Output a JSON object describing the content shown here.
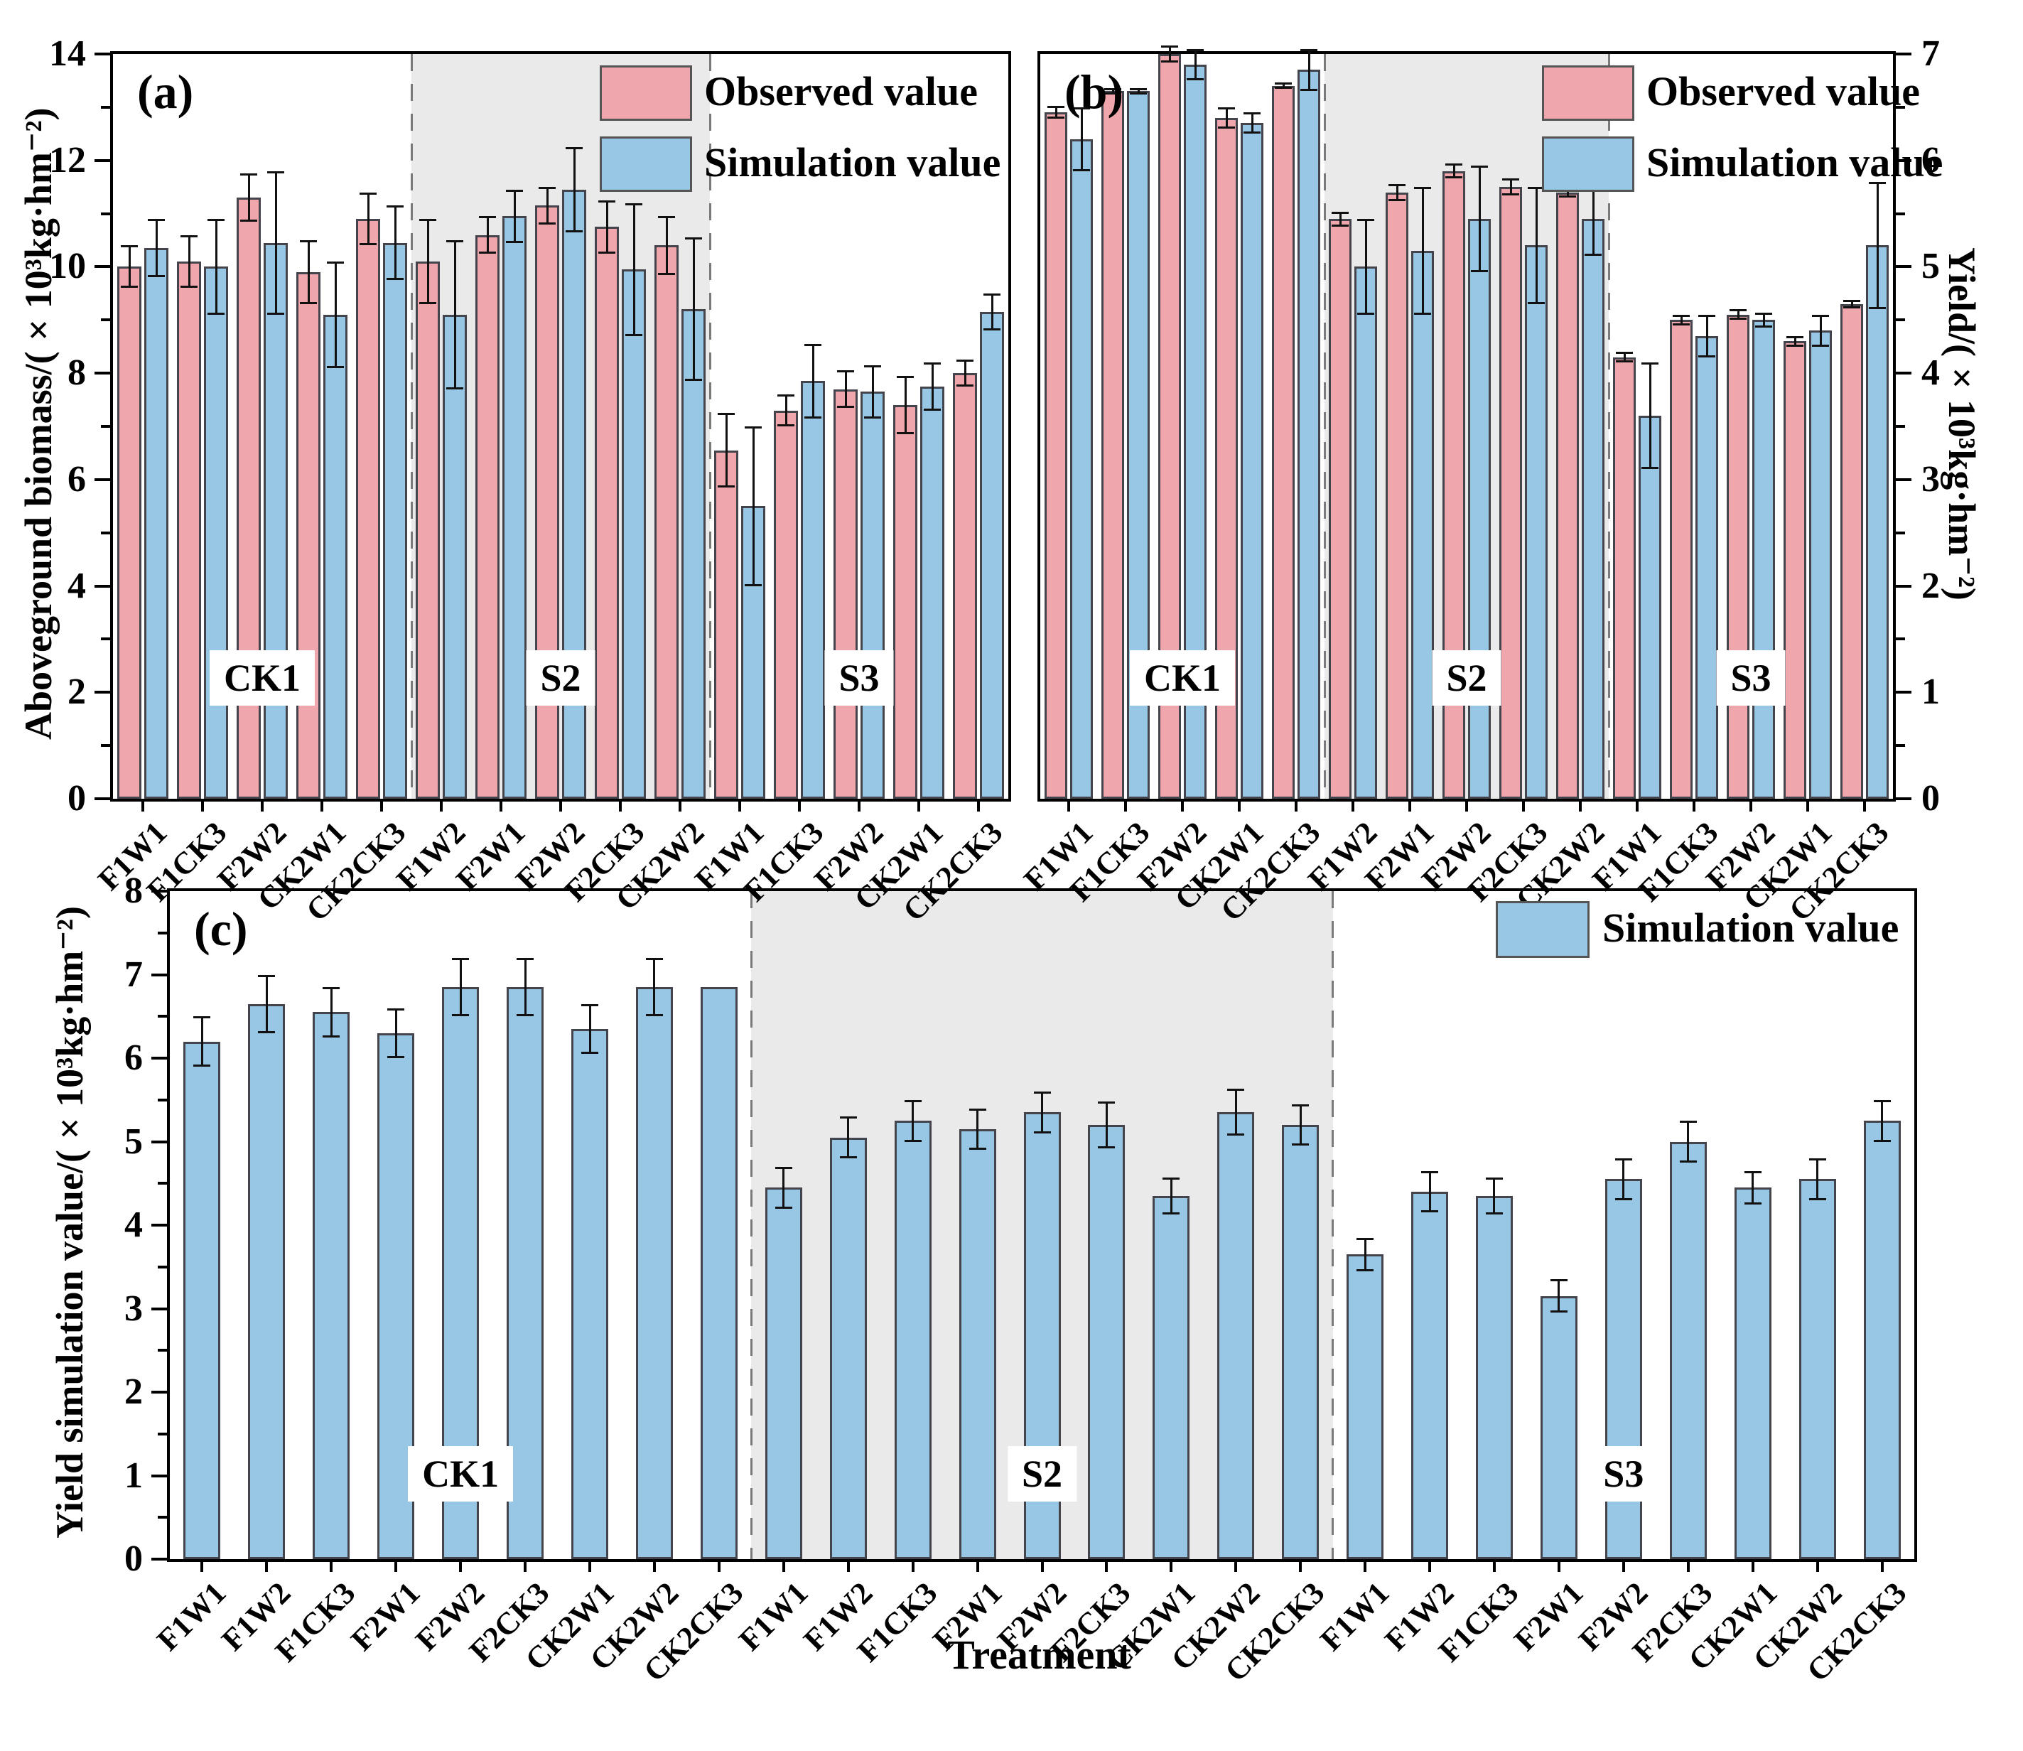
{
  "figure": {
    "colors": {
      "observed": "#EFA6AC",
      "simulation": "#97C7E5",
      "bar_border": "#44444c",
      "shading": "#EAEAEA",
      "error_bar": "#111111"
    }
  },
  "chart_data": [
    {
      "panel_label": "(a)",
      "type": "bar",
      "ylabel": "Aboveground biomass/(×10³kg·hm⁻²)",
      "ylim": [
        0,
        14
      ],
      "ytick_step": 2,
      "minor_tick_step": 1,
      "axis_side": "left",
      "legend_position": "top-right-inside",
      "grid": false,
      "groups": [
        {
          "name": "CK1",
          "shaded": false,
          "categories": [
            "F1W1",
            "F1CK3",
            "F2W2",
            "CK2W1",
            "CK2CK3"
          ],
          "series": [
            {
              "name": "Observed value",
              "color": "#EFA6AC",
              "values": [
                10.0,
                10.1,
                11.3,
                9.9,
                10.9
              ],
              "errors": [
                0.4,
                0.5,
                0.45,
                0.6,
                0.5
              ]
            },
            {
              "name": "Simulation value",
              "color": "#97C7E5",
              "values": [
                10.35,
                10.0,
                10.45,
                9.1,
                10.45
              ],
              "errors": [
                0.55,
                0.9,
                1.35,
                1.0,
                0.7
              ]
            }
          ]
        },
        {
          "name": "S2",
          "shaded": true,
          "categories": [
            "F1W2",
            "F2W1",
            "F2W2",
            "F2CK3",
            "CK2W2"
          ],
          "series": [
            {
              "name": "Observed value",
              "color": "#EFA6AC",
              "values": [
                10.1,
                10.6,
                11.15,
                10.75,
                10.4
              ],
              "errors": [
                0.8,
                0.35,
                0.35,
                0.5,
                0.55
              ]
            },
            {
              "name": "Simulation value",
              "color": "#97C7E5",
              "values": [
                9.1,
                10.95,
                11.45,
                9.95,
                9.2
              ],
              "errors": [
                1.4,
                0.5,
                0.8,
                1.25,
                1.35
              ]
            }
          ]
        },
        {
          "name": "S3",
          "shaded": false,
          "categories": [
            "F1W1",
            "F1CK3",
            "F2W2",
            "CK2W1",
            "CK2CK3"
          ],
          "series": [
            {
              "name": "Observed value",
              "color": "#EFA6AC",
              "values": [
                6.55,
                7.3,
                7.7,
                7.4,
                8.0
              ],
              "errors": [
                0.7,
                0.3,
                0.35,
                0.55,
                0.25
              ]
            },
            {
              "name": "Simulation value",
              "color": "#97C7E5",
              "values": [
                5.5,
                7.85,
                7.65,
                7.75,
                9.15
              ],
              "errors": [
                1.5,
                0.7,
                0.5,
                0.45,
                0.35
              ]
            }
          ]
        }
      ]
    },
    {
      "panel_label": "(b)",
      "type": "bar",
      "ylabel": "Yield/(×10³kg·hm⁻²)",
      "ylim": [
        0,
        7
      ],
      "ytick_step": 1,
      "minor_tick_step": 0.5,
      "axis_side": "right",
      "legend_position": "top-right-inside",
      "grid": false,
      "groups": [
        {
          "name": "CK1",
          "shaded": false,
          "categories": [
            "F1W1",
            "F1CK3",
            "F2W2",
            "CK2W1",
            "CK2CK3"
          ],
          "series": [
            {
              "name": "Observed value",
              "color": "#EFA6AC",
              "values": [
                6.45,
                6.65,
                7.0,
                6.4,
                6.7
              ],
              "errors": [
                0.06,
                0.03,
                0.08,
                0.1,
                0.03
              ]
            },
            {
              "name": "Simulation value",
              "color": "#97C7E5",
              "values": [
                6.2,
                6.65,
                6.9,
                6.35,
                6.85
              ],
              "errors": [
                0.3,
                0.03,
                0.15,
                0.1,
                0.2
              ]
            }
          ]
        },
        {
          "name": "S2",
          "shaded": true,
          "categories": [
            "F1W2",
            "F2W1",
            "F2W2",
            "F2CK3",
            "CK2W2"
          ],
          "series": [
            {
              "name": "Observed value",
              "color": "#EFA6AC",
              "values": [
                5.45,
                5.7,
                5.9,
                5.75,
                5.7
              ],
              "errors": [
                0.07,
                0.08,
                0.07,
                0.08,
                0.05
              ]
            },
            {
              "name": "Simulation value",
              "color": "#97C7E5",
              "values": [
                5.0,
                5.15,
                5.45,
                5.2,
                5.45
              ],
              "errors": [
                0.45,
                0.6,
                0.5,
                0.55,
                0.35
              ]
            }
          ]
        },
        {
          "name": "S3",
          "shaded": false,
          "categories": [
            "F1W1",
            "F1CK3",
            "F2W2",
            "CK2W1",
            "CK2CK3"
          ],
          "series": [
            {
              "name": "Observed value",
              "color": "#EFA6AC",
              "values": [
                4.15,
                4.5,
                4.55,
                4.3,
                4.65
              ],
              "errors": [
                0.05,
                0.05,
                0.05,
                0.05,
                0.04
              ]
            },
            {
              "name": "Simulation value",
              "color": "#97C7E5",
              "values": [
                3.6,
                4.35,
                4.5,
                4.4,
                5.2
              ],
              "errors": [
                0.5,
                0.2,
                0.07,
                0.15,
                0.6
              ]
            }
          ]
        }
      ]
    },
    {
      "panel_label": "(c)",
      "type": "bar",
      "ylabel": "Yield simulation value/(×10³kg·hm⁻²)",
      "xlabel": "Treatment",
      "ylim": [
        0,
        8
      ],
      "ytick_step": 1,
      "minor_tick_step": 0.5,
      "axis_side": "left",
      "legend_position": "top-right-inside",
      "grid": false,
      "groups": [
        {
          "name": "CK1",
          "shaded": false,
          "categories": [
            "F1W1",
            "F1W2",
            "F1CK3",
            "F2W1",
            "F2W2",
            "F2CK3",
            "CK2W1",
            "CK2W2",
            "CK2CK3"
          ],
          "series": [
            {
              "name": "Simulation value",
              "color": "#97C7E5",
              "values": [
                6.2,
                6.65,
                6.55,
                6.3,
                6.85,
                6.85,
                6.35,
                6.85,
                6.85
              ],
              "errors": [
                0.3,
                0.35,
                0.3,
                0.3,
                0.35,
                0.35,
                0.3,
                0.35,
                0
              ]
            }
          ]
        },
        {
          "name": "S2",
          "shaded": true,
          "categories": [
            "F1W1",
            "F1W2",
            "F1CK3",
            "F2W1",
            "F2W2",
            "F2CK3",
            "CK2W1",
            "CK2W2",
            "CK2CK3"
          ],
          "series": [
            {
              "name": "Simulation value",
              "color": "#97C7E5",
              "values": [
                4.45,
                5.05,
                5.25,
                5.15,
                5.35,
                5.2,
                4.35,
                5.35,
                5.2
              ],
              "errors": [
                0.25,
                0.25,
                0.25,
                0.25,
                0.25,
                0.28,
                0.22,
                0.28,
                0.25
              ]
            }
          ]
        },
        {
          "name": "S3",
          "shaded": false,
          "categories": [
            "F1W1",
            "F1W2",
            "F1CK3",
            "F2W1",
            "F2W2",
            "F2CK3",
            "CK2W1",
            "CK2W2",
            "CK2CK3"
          ],
          "series": [
            {
              "name": "Simulation value",
              "color": "#97C7E5",
              "values": [
                3.65,
                4.4,
                4.35,
                3.15,
                4.55,
                5.0,
                4.45,
                4.55,
                5.25
              ],
              "errors": [
                0.2,
                0.25,
                0.22,
                0.2,
                0.25,
                0.25,
                0.2,
                0.25,
                0.25
              ]
            }
          ]
        }
      ]
    }
  ]
}
